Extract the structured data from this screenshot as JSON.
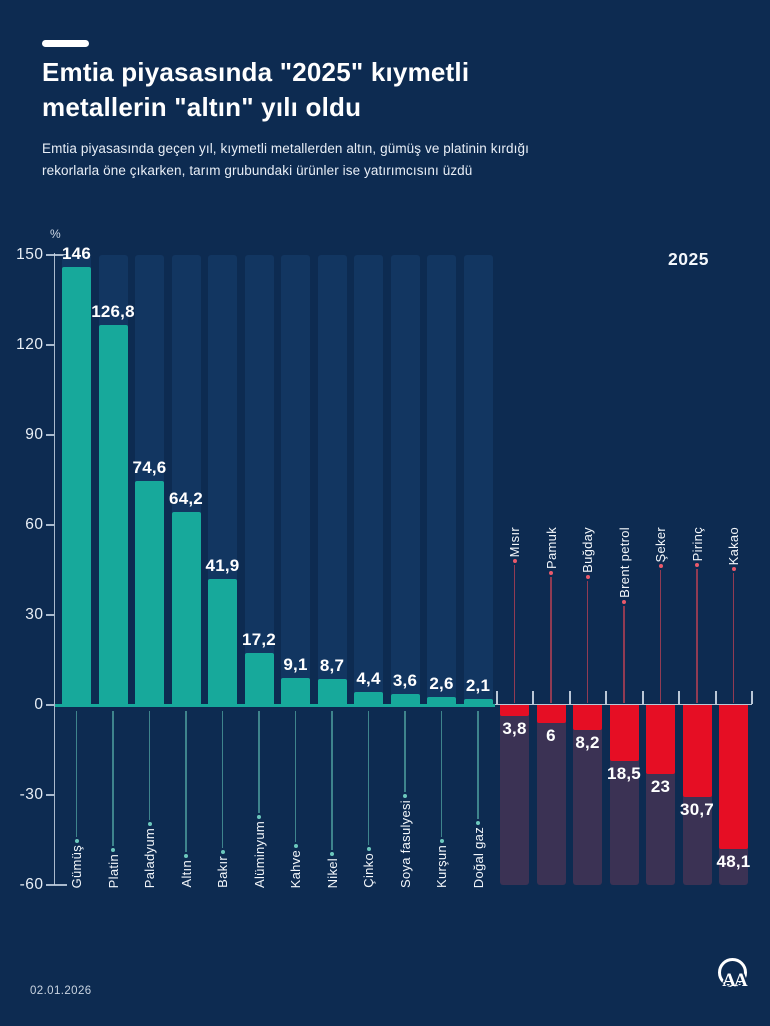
{
  "header": {
    "dash": "accent-dash",
    "title_line1": "Emtia piyasasında \"2025\" kıymetli",
    "title_line2": "metallerin \"altın\" yılı oldu",
    "subtitle_line1": "Emtia piyasasında geçen yıl, kıymetli metallerden altın, gümüş ve platinin kırdığı",
    "subtitle_line2": "rekorlarla öne çıkarken, tarım grubundaki ürünler ise yatırımcısını üzdü"
  },
  "chart": {
    "year_label": "2025",
    "unit_label": "%"
  },
  "footer": {
    "date": "02.01.2026",
    "logo_text": "AA"
  },
  "colors": {
    "background": "#0D2B51",
    "positive_bar": "#17A99B",
    "negative_bar": "#E60E24",
    "positive_track": "#123661",
    "negative_track": "#3B3254",
    "axis": "#C7D3E3",
    "text": "#FFFFFF"
  },
  "chart_data": {
    "type": "bar",
    "title": "Emtia piyasasında \"2025\" kıymetli metallerin \"altın\" yılı oldu",
    "xlabel": "",
    "ylabel": "%",
    "ylim": [
      -60,
      150
    ],
    "yticks": [
      150,
      120,
      90,
      60,
      30,
      0,
      -30,
      -60
    ],
    "grid": false,
    "legend": "none",
    "annotation_year": "2025",
    "categories": [
      "Gümüş",
      "Platin",
      "Paladyum",
      "Altın",
      "Bakır",
      "Alüminyum",
      "Kahve",
      "Nikel",
      "Çinko",
      "Soya fasulyesi",
      "Kurşun",
      "Doğal gaz",
      "Mısır",
      "Pamuk",
      "Buğday",
      "Brent petrol",
      "Şeker",
      "Pirinç",
      "Kakao"
    ],
    "values": [
      146,
      126.8,
      74.6,
      64.2,
      41.9,
      17.2,
      9.1,
      8.7,
      4.4,
      3.6,
      2.6,
      2.1,
      -3.8,
      -6,
      -8.2,
      -18.5,
      -23,
      -30.7,
      -48.1
    ],
    "value_labels": [
      "146",
      "126,8",
      "74,6",
      "64,2",
      "41,9",
      "17,2",
      "9,1",
      "8,7",
      "4,4",
      "3,6",
      "2,6",
      "2,1",
      "3,8",
      "6",
      "8,2",
      "18,5",
      "23",
      "30,7",
      "48,1"
    ]
  }
}
